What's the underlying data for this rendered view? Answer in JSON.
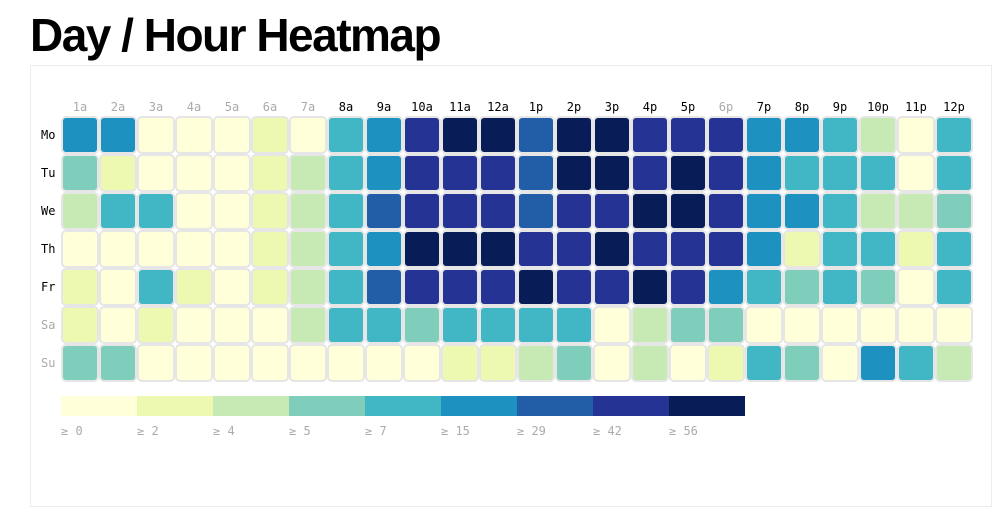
{
  "page": {
    "title": "Day / Hour Heatmap"
  },
  "colors": {
    "hour_label_active": "#000000",
    "hour_label_inactive": "#aaaaaa",
    "day_label_active": "#000000",
    "day_label_inactive": "#aaaaaa",
    "cell_border": "#e6e6e6",
    "legend_label": "#aaaaaa"
  },
  "chart_data": {
    "type": "heatmap",
    "title": "Day / Hour Heatmap",
    "days": [
      "Mo",
      "Tu",
      "We",
      "Th",
      "Fr",
      "Sa",
      "Su"
    ],
    "days_highlighted": [
      true,
      true,
      true,
      true,
      true,
      false,
      false
    ],
    "hours": [
      "1a",
      "2a",
      "3a",
      "4a",
      "5a",
      "6a",
      "7a",
      "8a",
      "9a",
      "10a",
      "11a",
      "12a",
      "1p",
      "2p",
      "3p",
      "4p",
      "5p",
      "6p",
      "7p",
      "8p",
      "9p",
      "10p",
      "11p",
      "12p"
    ],
    "hours_highlighted": [
      false,
      false,
      false,
      false,
      false,
      false,
      false,
      true,
      true,
      true,
      true,
      true,
      true,
      true,
      true,
      true,
      true,
      false,
      true,
      true,
      true,
      true,
      true,
      true
    ],
    "palette": [
      "#ffffd9",
      "#edf8b1",
      "#c7e9b4",
      "#7fcdbb",
      "#41b6c4",
      "#1d91c0",
      "#225ea8",
      "#253494",
      "#081d58"
    ],
    "legend": {
      "thresholds": [
        0,
        2,
        4,
        5,
        7,
        15,
        29,
        42,
        56
      ],
      "labels": [
        "≥ 0",
        "≥ 2",
        "≥ 4",
        "≥ 5",
        "≥ 7",
        "≥ 15",
        "≥ 29",
        "≥ 42",
        "≥ 56"
      ]
    },
    "color_buckets": [
      [
        5,
        5,
        0,
        0,
        0,
        1,
        0,
        4,
        5,
        7,
        8,
        8,
        6,
        8,
        8,
        7,
        7,
        7,
        5,
        5,
        4,
        2,
        0,
        4
      ],
      [
        3,
        1,
        0,
        0,
        0,
        1,
        2,
        4,
        5,
        7,
        7,
        7,
        6,
        8,
        8,
        7,
        8,
        7,
        5,
        4,
        4,
        4,
        0,
        4
      ],
      [
        2,
        4,
        4,
        0,
        0,
        1,
        2,
        4,
        6,
        7,
        7,
        7,
        6,
        7,
        7,
        8,
        8,
        7,
        5,
        5,
        4,
        2,
        2,
        3
      ],
      [
        0,
        0,
        0,
        0,
        0,
        1,
        2,
        4,
        5,
        8,
        8,
        8,
        7,
        7,
        8,
        7,
        7,
        7,
        5,
        1,
        4,
        4,
        1,
        4
      ],
      [
        1,
        0,
        4,
        1,
        0,
        1,
        2,
        4,
        6,
        7,
        7,
        7,
        8,
        7,
        7,
        8,
        7,
        5,
        4,
        3,
        4,
        3,
        0,
        4
      ],
      [
        1,
        0,
        1,
        0,
        0,
        0,
        2,
        4,
        4,
        3,
        4,
        4,
        4,
        4,
        0,
        2,
        3,
        3,
        0,
        0,
        0,
        0,
        0,
        0
      ],
      [
        3,
        3,
        0,
        0,
        0,
        0,
        0,
        0,
        0,
        0,
        1,
        1,
        2,
        3,
        0,
        2,
        0,
        1,
        4,
        3,
        0,
        5,
        4,
        2
      ]
    ]
  }
}
